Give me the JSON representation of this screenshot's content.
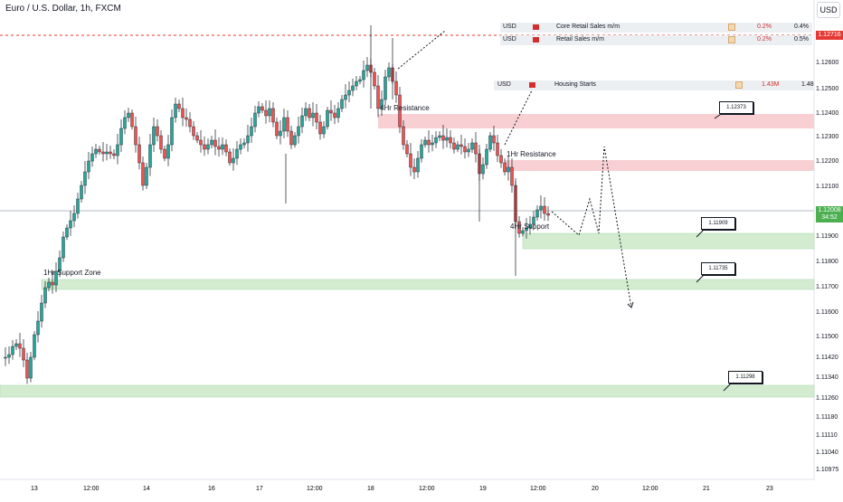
{
  "header": {
    "title": "Euro / U.S. Dollar, 1h, FXCM",
    "currency_button": "USD"
  },
  "events": [
    {
      "currency": "USD",
      "name": "Core Retail Sales m/m",
      "forecast": "0.2%",
      "previous": "0.4%"
    },
    {
      "currency": "USD",
      "name": "Retail Sales m/m",
      "forecast": "0.2%",
      "previous": "0.5%"
    },
    {
      "currency": "USD",
      "name": "Housing Starts",
      "forecast": "1.43M",
      "previous": "1.48"
    }
  ],
  "price_axis": {
    "labels": [
      "1.12600",
      "1.12500",
      "1.12400",
      "1.12300",
      "1.12200",
      "1.12100",
      "1.11900",
      "1.11800",
      "1.11700",
      "1.11600",
      "1.11500",
      "1.11420",
      "1.11340",
      "1.11260",
      "1.11180",
      "1.11110",
      "1.11040",
      "1.10975"
    ],
    "alert_price": "1.12716",
    "last_price": "1.12008",
    "countdown": "34:52"
  },
  "time_axis": [
    "13",
    "12:00",
    "14",
    "16",
    "17",
    "12:00",
    "18",
    "12:00",
    "19",
    "12:00",
    "20",
    "12:00",
    "21",
    "23"
  ],
  "zones": {
    "resistance_4hr": "4Hr Resistance",
    "resistance_1hr": "1Hr Resistance",
    "support_4hr": "4Hr Support",
    "support_1hr": "1Hr Support Zone"
  },
  "callouts": [
    "1.12373",
    "1.11909",
    "1.11735",
    "1.11298"
  ],
  "colors": {
    "up": "#26a69a",
    "down": "#ef5350",
    "resistance_zone": "#f8d0d3",
    "support_zone": "#d3ecd0",
    "alert_line": "#e53935"
  }
}
